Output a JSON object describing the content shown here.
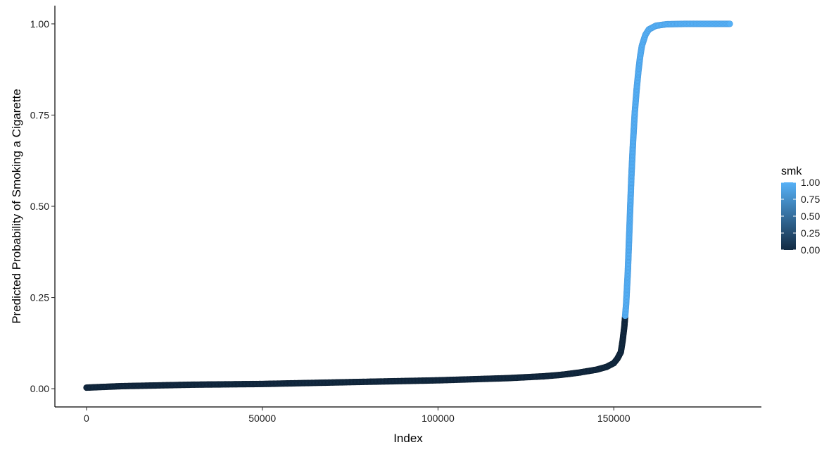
{
  "chart_data": {
    "type": "scatter",
    "title": "",
    "xlabel": "Index",
    "ylabel": "Predicted Probability of Smoking a Cigarette",
    "xlim": [
      -9000,
      192000
    ],
    "ylim": [
      -0.05,
      1.05
    ],
    "x_ticks": [
      {
        "value": 0,
        "label": "0"
      },
      {
        "value": 50000,
        "label": "50000"
      },
      {
        "value": 100000,
        "label": "100000"
      },
      {
        "value": 150000,
        "label": "150000"
      }
    ],
    "y_ticks": [
      {
        "value": 0,
        "label": "0.00"
      },
      {
        "value": 0.25,
        "label": "0.25"
      },
      {
        "value": 0.5,
        "label": "0.50"
      },
      {
        "value": 0.75,
        "label": "0.75"
      },
      {
        "value": 1,
        "label": "1.00"
      }
    ],
    "grid": false,
    "legend": {
      "title": "smk",
      "position": "right",
      "type": "colorbar",
      "low_color": "#132B43",
      "high_color": "#56B1F7",
      "ticks": [
        {
          "value": 0,
          "label": "0.00"
        },
        {
          "value": 0.25,
          "label": "0.25"
        },
        {
          "value": 0.5,
          "label": "0.50"
        },
        {
          "value": 0.75,
          "label": "0.75"
        },
        {
          "value": 1,
          "label": "1.00"
        }
      ]
    },
    "series": [
      {
        "x": [
          0,
          5000,
          10000,
          20000,
          30000,
          40000,
          50000,
          60000,
          70000,
          80000,
          90000,
          100000,
          110000,
          120000,
          130000,
          135000,
          140000,
          145000,
          148000,
          150000,
          151000,
          152000,
          152500,
          153000,
          153500,
          154000,
          154500,
          155000,
          155500,
          156000,
          156500,
          157000,
          157500,
          158000,
          159000,
          160000,
          162000,
          165000,
          170000,
          175000,
          183000
        ],
        "y": [
          0.003,
          0.005,
          0.007,
          0.009,
          0.011,
          0.012,
          0.013,
          0.015,
          0.017,
          0.019,
          0.021,
          0.023,
          0.026,
          0.029,
          0.034,
          0.038,
          0.044,
          0.052,
          0.06,
          0.07,
          0.082,
          0.1,
          0.13,
          0.17,
          0.23,
          0.32,
          0.45,
          0.58,
          0.68,
          0.76,
          0.82,
          0.87,
          0.91,
          0.94,
          0.97,
          0.985,
          0.995,
          0.999,
          1.0,
          1.0,
          1.0
        ],
        "smk_level": [
          0,
          0,
          0,
          0,
          0,
          0,
          0,
          0,
          0,
          0,
          0,
          0,
          0,
          0,
          0,
          0,
          0,
          0,
          0,
          0,
          0,
          0,
          0,
          0,
          1,
          1,
          1,
          1,
          1,
          1,
          1,
          1,
          1,
          1,
          1,
          1,
          1,
          1,
          1,
          1,
          1
        ]
      }
    ]
  }
}
